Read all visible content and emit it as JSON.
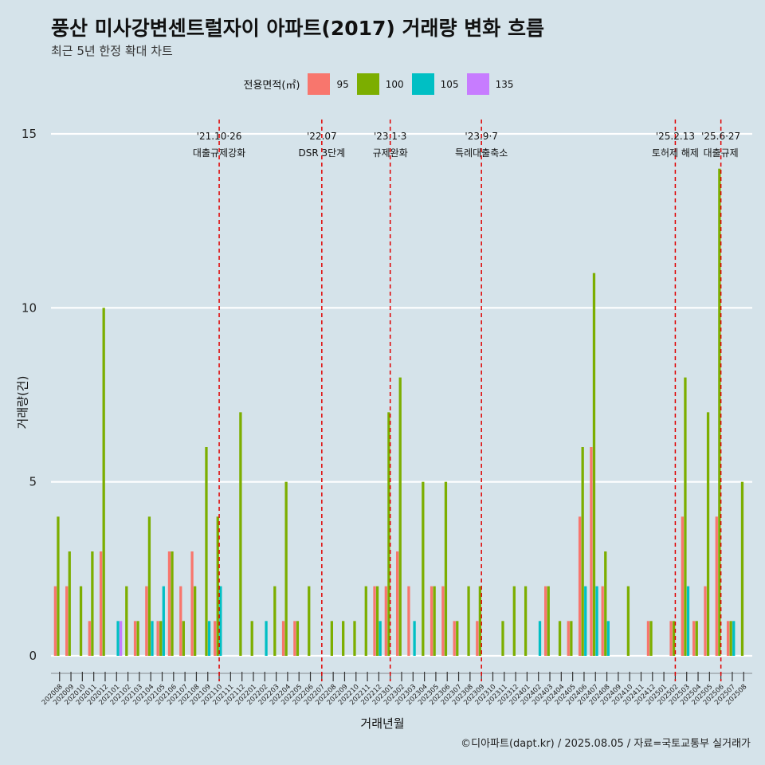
{
  "title": "풍산 미사강변센트럴자이 아파트(2017) 거래량 변화 흐름",
  "subtitle": "최근 5년 한정 확대 차트",
  "caption": "©디아파트(dapt.kr) / 2025.08.05 / 자료=국토교통부 실거래가",
  "colors": {
    "background": "#d5e3ea",
    "event_line": "#e00000",
    "grid": "#ffffff"
  },
  "chart_data": {
    "type": "bar",
    "title": "풍산 미사강변센트럴자이 아파트(2017) 거래량 변화 흐름",
    "subtitle": "최근 5년 한정 확대 차트",
    "xlabel": "거래년월",
    "ylabel": "거래량(건)",
    "ylim": [
      0,
      15
    ],
    "yticks": [
      0,
      5,
      10,
      15
    ],
    "grid": "horizontal",
    "legend_title": "전용면적(㎡)",
    "legend_position": "top",
    "categories": [
      "202008",
      "202009",
      "202010",
      "202011",
      "202012",
      "202101",
      "202102",
      "202103",
      "202104",
      "202105",
      "202106",
      "202107",
      "202108",
      "202109",
      "202110",
      "202111",
      "202112",
      "202201",
      "202202",
      "202203",
      "202204",
      "202205",
      "202206",
      "202207",
      "202208",
      "202209",
      "202210",
      "202211",
      "202212",
      "202301",
      "202302",
      "202303",
      "202304",
      "202305",
      "202306",
      "202307",
      "202308",
      "202309",
      "202310",
      "202311",
      "202312",
      "202401",
      "202402",
      "202403",
      "202404",
      "202405",
      "202406",
      "202407",
      "202408",
      "202409",
      "202410",
      "202411",
      "202412",
      "202501",
      "202502",
      "202503",
      "202504",
      "202505",
      "202506",
      "202507",
      "202508"
    ],
    "series": [
      {
        "name": "95",
        "color": "#f8766d",
        "values": [
          2,
          2,
          0,
          1,
          3,
          0,
          0,
          1,
          2,
          1,
          3,
          2,
          3,
          0,
          1,
          0,
          0,
          0,
          0,
          0,
          1,
          1,
          0,
          0,
          0,
          0,
          0,
          0,
          2,
          2,
          3,
          2,
          0,
          2,
          2,
          1,
          0,
          1,
          0,
          0,
          0,
          0,
          0,
          2,
          0,
          1,
          4,
          6,
          2,
          0,
          0,
          0,
          1,
          0,
          1,
          4,
          1,
          2,
          4,
          1,
          0
        ]
      },
      {
        "name": "100",
        "color": "#7cae00",
        "values": [
          4,
          3,
          2,
          3,
          10,
          0,
          2,
          1,
          4,
          1,
          3,
          1,
          2,
          6,
          4,
          0,
          7,
          1,
          0,
          2,
          5,
          1,
          2,
          0,
          1,
          1,
          1,
          2,
          2,
          7,
          8,
          0,
          5,
          2,
          5,
          1,
          2,
          2,
          0,
          1,
          2,
          2,
          0,
          2,
          1,
          1,
          6,
          11,
          3,
          0,
          2,
          0,
          1,
          0,
          1,
          8,
          1,
          7,
          14,
          1,
          5
        ]
      },
      {
        "name": "105",
        "color": "#00bfc4",
        "values": [
          0,
          0,
          0,
          0,
          0,
          1,
          0,
          0,
          1,
          2,
          0,
          0,
          0,
          1,
          2,
          0,
          0,
          0,
          1,
          0,
          0,
          0,
          0,
          0,
          0,
          0,
          0,
          0,
          1,
          0,
          0,
          1,
          0,
          0,
          0,
          0,
          0,
          0,
          0,
          0,
          0,
          0,
          1,
          0,
          0,
          0,
          2,
          2,
          1,
          0,
          0,
          0,
          0,
          0,
          0,
          2,
          0,
          0,
          0,
          1,
          0
        ]
      },
      {
        "name": "135",
        "color": "#c77cff",
        "values": [
          0,
          0,
          0,
          0,
          0,
          1,
          0,
          0,
          0,
          0,
          0,
          0,
          0,
          0,
          0,
          0,
          0,
          0,
          0,
          0,
          0,
          0,
          0,
          0,
          0,
          0,
          0,
          0,
          0,
          0,
          0,
          0,
          0,
          0,
          0,
          0,
          0,
          0,
          0,
          0,
          0,
          0,
          0,
          0,
          0,
          0,
          0,
          0,
          0,
          0,
          0,
          0,
          0,
          0,
          0,
          0,
          0,
          0,
          0,
          0,
          0
        ]
      }
    ],
    "events": [
      {
        "x": "202110",
        "date": "'21.10·26",
        "label": "대출규제강화"
      },
      {
        "x": "202207",
        "date": "'22.07",
        "label": "DSR 3단계"
      },
      {
        "x": "202301",
        "date": "'23.1·3",
        "label": "규제완화"
      },
      {
        "x": "202309",
        "date": "'23.9·7",
        "label": "특례대출축소"
      },
      {
        "x": "202502",
        "date": "'25.2.13",
        "label": "토허제 해제"
      },
      {
        "x": "202506",
        "date": "'25.6·27",
        "label": "대출규제"
      }
    ]
  }
}
